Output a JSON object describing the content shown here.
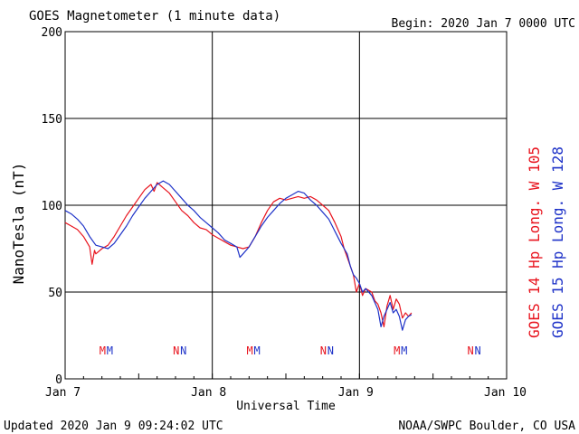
{
  "header": {
    "title": "GOES Magnetometer (1 minute data)",
    "begin": "Begin:  2020 Jan 7 0000 UTC"
  },
  "footer": {
    "updated": "Updated 2020 Jan  9 09:24:02 UTC",
    "credit": "NOAA/SWPC Boulder, CO USA"
  },
  "chart_data": {
    "type": "line",
    "xlabel": "Universal Time",
    "ylabel": "NanoTesla (nT)",
    "xlim": [
      0,
      72
    ],
    "ylim": [
      0,
      200
    ],
    "x_unit": "hours since 2020 Jan 7 0000 UTC",
    "x_ticks": [
      {
        "x": 0,
        "label": "Jan 7"
      },
      {
        "x": 24,
        "label": "Jan 8"
      },
      {
        "x": 48,
        "label": "Jan 9"
      },
      {
        "x": 72,
        "label": "Jan 10"
      }
    ],
    "y_ticks": [
      0,
      50,
      100,
      150,
      200
    ],
    "grid": true,
    "series": [
      {
        "name": "GOES 14 Hp  Long. W 105",
        "color": "#e8141e",
        "points": [
          [
            0,
            90
          ],
          [
            1,
            88
          ],
          [
            2,
            86
          ],
          [
            3,
            82
          ],
          [
            4,
            76
          ],
          [
            4.4,
            66
          ],
          [
            4.8,
            74
          ],
          [
            5,
            72
          ],
          [
            6,
            75
          ],
          [
            7,
            77
          ],
          [
            8,
            82
          ],
          [
            9,
            88
          ],
          [
            10,
            94
          ],
          [
            11,
            99
          ],
          [
            12,
            104
          ],
          [
            13,
            109
          ],
          [
            14,
            112
          ],
          [
            14.5,
            108
          ],
          [
            15,
            113
          ],
          [
            16,
            110
          ],
          [
            17,
            107
          ],
          [
            18,
            102
          ],
          [
            19,
            97
          ],
          [
            20,
            94
          ],
          [
            21,
            90
          ],
          [
            22,
            87
          ],
          [
            23,
            86
          ],
          [
            24,
            83
          ],
          [
            25,
            81
          ],
          [
            26,
            79
          ],
          [
            27,
            77
          ],
          [
            28,
            76
          ],
          [
            29,
            75
          ],
          [
            30,
            76
          ],
          [
            31,
            82
          ],
          [
            32,
            90
          ],
          [
            33,
            97
          ],
          [
            34,
            102
          ],
          [
            35,
            104
          ],
          [
            36,
            103
          ],
          [
            37,
            104
          ],
          [
            38,
            105
          ],
          [
            39,
            104
          ],
          [
            40,
            105
          ],
          [
            41,
            103
          ],
          [
            42,
            100
          ],
          [
            43,
            97
          ],
          [
            44,
            90
          ],
          [
            45,
            82
          ],
          [
            45.5,
            75
          ],
          [
            46,
            70
          ],
          [
            47,
            60
          ],
          [
            47.5,
            50
          ],
          [
            48,
            55
          ],
          [
            48.5,
            48
          ],
          [
            49,
            52
          ],
          [
            50,
            50
          ],
          [
            50.5,
            45
          ],
          [
            51,
            43
          ],
          [
            51.5,
            38
          ],
          [
            52,
            30
          ],
          [
            52.5,
            42
          ],
          [
            53,
            48
          ],
          [
            53.5,
            40
          ],
          [
            54,
            46
          ],
          [
            54.5,
            43
          ],
          [
            55,
            35
          ],
          [
            55.5,
            38
          ],
          [
            56,
            36
          ],
          [
            56.5,
            38
          ]
        ]
      },
      {
        "name": "GOES 15 Hp  Long. W 128",
        "color": "#1e32c8",
        "points": [
          [
            0,
            97
          ],
          [
            1,
            95
          ],
          [
            2,
            92
          ],
          [
            3,
            88
          ],
          [
            4,
            82
          ],
          [
            5,
            77
          ],
          [
            6,
            76
          ],
          [
            7,
            75
          ],
          [
            8,
            78
          ],
          [
            9,
            83
          ],
          [
            10,
            88
          ],
          [
            11,
            94
          ],
          [
            12,
            99
          ],
          [
            13,
            104
          ],
          [
            14,
            108
          ],
          [
            15,
            112
          ],
          [
            16,
            114
          ],
          [
            17,
            112
          ],
          [
            18,
            108
          ],
          [
            19,
            104
          ],
          [
            20,
            100
          ],
          [
            21,
            97
          ],
          [
            22,
            93
          ],
          [
            23,
            90
          ],
          [
            24,
            87
          ],
          [
            25,
            84
          ],
          [
            26,
            80
          ],
          [
            27,
            78
          ],
          [
            28,
            76
          ],
          [
            28.5,
            70
          ],
          [
            29,
            72
          ],
          [
            30,
            76
          ],
          [
            31,
            82
          ],
          [
            32,
            88
          ],
          [
            33,
            93
          ],
          [
            34,
            97
          ],
          [
            35,
            101
          ],
          [
            36,
            104
          ],
          [
            37,
            106
          ],
          [
            38,
            108
          ],
          [
            39,
            107
          ],
          [
            40,
            103
          ],
          [
            41,
            100
          ],
          [
            42,
            96
          ],
          [
            43,
            92
          ],
          [
            44,
            85
          ],
          [
            45,
            78
          ],
          [
            46,
            72
          ],
          [
            46.5,
            65
          ],
          [
            47,
            60
          ],
          [
            47.5,
            58
          ],
          [
            48,
            55
          ],
          [
            48.5,
            50
          ],
          [
            49,
            52
          ],
          [
            50,
            48
          ],
          [
            50.5,
            44
          ],
          [
            51,
            40
          ],
          [
            51.5,
            30
          ],
          [
            52,
            36
          ],
          [
            52.5,
            40
          ],
          [
            53,
            44
          ],
          [
            53.5,
            38
          ],
          [
            54,
            40
          ],
          [
            54.5,
            36
          ],
          [
            55,
            28
          ],
          [
            55.5,
            34
          ],
          [
            56,
            36
          ],
          [
            56.5,
            37
          ]
        ]
      }
    ],
    "markers": [
      {
        "x": 6.7,
        "label": "M"
      },
      {
        "x": 18.7,
        "label": "N"
      },
      {
        "x": 30.7,
        "label": "M"
      },
      {
        "x": 42.7,
        "label": "N"
      },
      {
        "x": 54.7,
        "label": "M"
      },
      {
        "x": 66.7,
        "label": "N"
      }
    ]
  }
}
